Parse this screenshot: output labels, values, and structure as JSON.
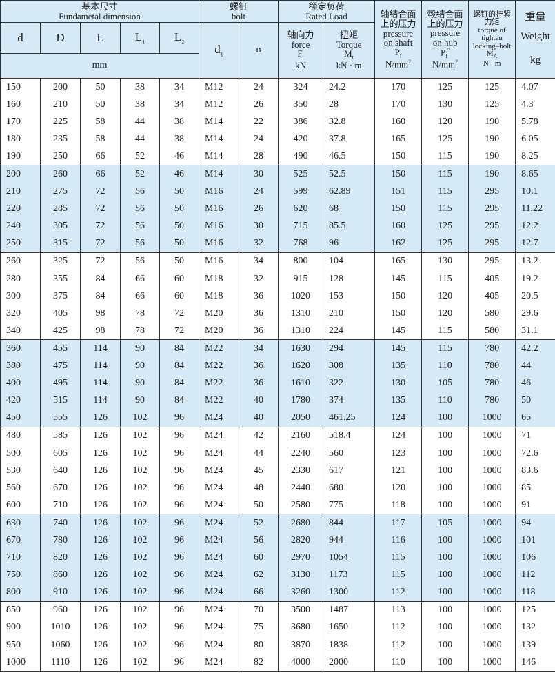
{
  "header": {
    "fundamental_cn": "基本尺寸",
    "fundamental_en": "Fundametal dimension",
    "bolt_cn": "螺钉",
    "bolt_en": "bolt",
    "rated_cn": "额定负荷",
    "rated_en": "Rated Load",
    "cols": {
      "d": "d",
      "D": "D",
      "L": "L",
      "L1": "L",
      "L1_sub": "1",
      "L2": "L",
      "L2_sub": "2",
      "d1": "d",
      "d1_sub": "1",
      "n": "n",
      "force_cn": "轴向力",
      "force_en": "force",
      "force_sym": "F",
      "force_sub": "t",
      "force_unit": "kN",
      "torque_cn": "扭矩",
      "torque_en": "Torque",
      "torque_sym": "M",
      "torque_sub": "t",
      "torque_unit": "kN · m",
      "pshaft_cn1": "轴结合面",
      "pshaft_cn2": "上的压力",
      "pshaft_en1": "pressure",
      "pshaft_en2": "on shaft",
      "pshaft_sym": "P",
      "pshaft_sub": "f",
      "pshaft_unit": "N/mm",
      "pshaft_sup": "2",
      "phub_cn1": "毂结合面",
      "phub_cn2": "上的压力",
      "phub_en1": "pressure",
      "phub_en2": "on hub",
      "phub_sym": "P",
      "phub_sub": "f",
      "phub_sup1": "\"",
      "phub_unit": "N/mm",
      "phub_sup": "2",
      "tq_cn1": "螺钉的拧紧",
      "tq_cn2": "力矩",
      "tq_en1": "torque of",
      "tq_en2": "tighten",
      "tq_en3": "locking–bolt",
      "tq_sym": "M",
      "tq_sub": "A",
      "tq_unit": "N · m",
      "weight_cn": "重量",
      "weight_en": "Weight",
      "weight_unit": "kg"
    },
    "mm": "mm"
  },
  "groups": [
    [
      [
        "150",
        "200",
        "50",
        "38",
        "34",
        "M12",
        "24",
        "324",
        "24.2",
        "170",
        "125",
        "125",
        "4.07"
      ],
      [
        "160",
        "210",
        "50",
        "38",
        "34",
        "M12",
        "26",
        "350",
        "28",
        "170",
        "130",
        "125",
        "4.3"
      ],
      [
        "170",
        "225",
        "58",
        "44",
        "38",
        "M14",
        "22",
        "386",
        "32.8",
        "160",
        "120",
        "190",
        "5.78"
      ],
      [
        "180",
        "235",
        "58",
        "44",
        "38",
        "M14",
        "24",
        "420",
        "37.8",
        "165",
        "125",
        "190",
        "6.05"
      ],
      [
        "190",
        "250",
        "66",
        "52",
        "46",
        "M14",
        "28",
        "490",
        "46.5",
        "150",
        "115",
        "190",
        "8.25"
      ]
    ],
    [
      [
        "200",
        "260",
        "66",
        "52",
        "46",
        "M14",
        "30",
        "525",
        "52.5",
        "150",
        "115",
        "190",
        "8.65"
      ],
      [
        "210",
        "275",
        "72",
        "56",
        "50",
        "M16",
        "24",
        "599",
        "62.89",
        "151",
        "115",
        "295",
        "10.1"
      ],
      [
        "220",
        "285",
        "72",
        "56",
        "50",
        "M16",
        "26",
        "620",
        "68",
        "150",
        "115",
        "295",
        "11.22"
      ],
      [
        "240",
        "305",
        "72",
        "56",
        "50",
        "M16",
        "30",
        "715",
        "85.5",
        "160",
        "125",
        "295",
        "12.2"
      ],
      [
        "250",
        "315",
        "72",
        "56",
        "50",
        "M16",
        "32",
        "768",
        "96",
        "162",
        "125",
        "295",
        "12.7"
      ]
    ],
    [
      [
        "260",
        "325",
        "72",
        "56",
        "50",
        "M16",
        "34",
        "800",
        "104",
        "165",
        "130",
        "295",
        "13.2"
      ],
      [
        "280",
        "355",
        "84",
        "66",
        "60",
        "M18",
        "32",
        "915",
        "128",
        "145",
        "115",
        "405",
        "19.2"
      ],
      [
        "300",
        "375",
        "84",
        "66",
        "60",
        "M18",
        "36",
        "1020",
        "153",
        "150",
        "120",
        "405",
        "20.5"
      ],
      [
        "320",
        "405",
        "98",
        "78",
        "72",
        "M20",
        "36",
        "1310",
        "210",
        "150",
        "120",
        "580",
        "29.6"
      ],
      [
        "340",
        "425",
        "98",
        "78",
        "72",
        "M20",
        "36",
        "1310",
        "224",
        "145",
        "115",
        "580",
        "31.1"
      ]
    ],
    [
      [
        "360",
        "455",
        "114",
        "90",
        "84",
        "M22",
        "34",
        "1630",
        "294",
        "145",
        "115",
        "780",
        "42.2"
      ],
      [
        "380",
        "475",
        "114",
        "90",
        "84",
        "M22",
        "36",
        "1620",
        "308",
        "135",
        "110",
        "780",
        "44"
      ],
      [
        "400",
        "495",
        "114",
        "90",
        "84",
        "M22",
        "36",
        "1610",
        "322",
        "130",
        "105",
        "780",
        "46"
      ],
      [
        "420",
        "515",
        "114",
        "90",
        "84",
        "M22",
        "40",
        "1780",
        "374",
        "135",
        "110",
        "780",
        "50"
      ],
      [
        "450",
        "555",
        "126",
        "102",
        "96",
        "M24",
        "40",
        "2050",
        "461.25",
        "124",
        "100",
        "1000",
        "65"
      ]
    ],
    [
      [
        "480",
        "585",
        "126",
        "102",
        "96",
        "M24",
        "42",
        "2160",
        "518.4",
        "124",
        "100",
        "1000",
        "71"
      ],
      [
        "500",
        "605",
        "126",
        "102",
        "96",
        "M24",
        "44",
        "2240",
        "560",
        "123",
        "100",
        "1000",
        "72.6"
      ],
      [
        "530",
        "640",
        "126",
        "102",
        "96",
        "M24",
        "45",
        "2330",
        "617",
        "121",
        "100",
        "1000",
        "83.6"
      ],
      [
        "560",
        "670",
        "126",
        "102",
        "96",
        "M24",
        "48",
        "2440",
        "680",
        "120",
        "100",
        "1000",
        "85"
      ],
      [
        "600",
        "710",
        "126",
        "102",
        "96",
        "M24",
        "50",
        "2580",
        "775",
        "118",
        "100",
        "1000",
        "91"
      ]
    ],
    [
      [
        "630",
        "740",
        "126",
        "102",
        "96",
        "M24",
        "52",
        "2680",
        "844",
        "117",
        "105",
        "1000",
        "94"
      ],
      [
        "670",
        "780",
        "126",
        "102",
        "96",
        "M24",
        "56",
        "2820",
        "944",
        "116",
        "100",
        "1000",
        "101"
      ],
      [
        "710",
        "820",
        "126",
        "102",
        "96",
        "M24",
        "60",
        "2970",
        "1054",
        "115",
        "100",
        "1000",
        "106"
      ],
      [
        "750",
        "860",
        "126",
        "102",
        "96",
        "M24",
        "62",
        "3130",
        "1173",
        "115",
        "100",
        "1000",
        "112"
      ],
      [
        "800",
        "910",
        "126",
        "102",
        "96",
        "M24",
        "66",
        "3260",
        "1300",
        "112",
        "100",
        "1000",
        "118"
      ]
    ],
    [
      [
        "850",
        "960",
        "126",
        "102",
        "96",
        "M24",
        "70",
        "3500",
        "1487",
        "113",
        "100",
        "1000",
        "125"
      ],
      [
        "900",
        "1010",
        "126",
        "102",
        "96",
        "M24",
        "75",
        "3680",
        "1650",
        "112",
        "100",
        "1000",
        "132"
      ],
      [
        "950",
        "1060",
        "126",
        "102",
        "96",
        "M24",
        "80",
        "3870",
        "1838",
        "112",
        "100",
        "1000",
        "139"
      ],
      [
        "1000",
        "1110",
        "126",
        "102",
        "96",
        "M24",
        "82",
        "4000",
        "2000",
        "110",
        "100",
        "1000",
        "146"
      ]
    ]
  ],
  "colors": {
    "shade": "#d5e9f6",
    "border": "#333333"
  }
}
